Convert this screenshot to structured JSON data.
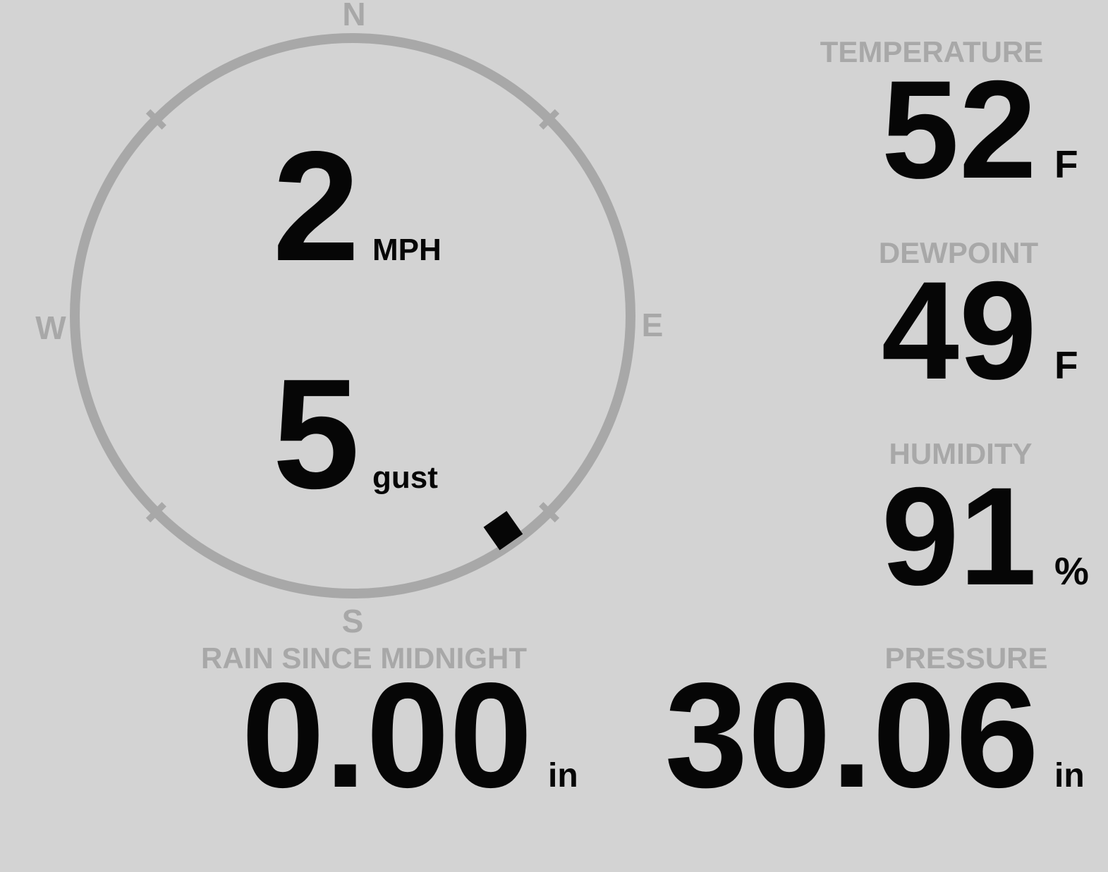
{
  "theme": {
    "background": "#d3d3d3",
    "muted_gray": "#a8a8a8",
    "ink": "#060606"
  },
  "compass": {
    "cardinals": {
      "north": "N",
      "east": "E",
      "south": "S",
      "west": "W"
    },
    "wind_speed": {
      "value": "2",
      "unit": "MPH"
    },
    "wind_gust": {
      "value": "5",
      "unit": "gust"
    },
    "wind_direction_deg": 145
  },
  "stats": {
    "temperature": {
      "label": "TEMPERATURE",
      "value": "52",
      "unit": "F"
    },
    "dewpoint": {
      "label": "DEWPOINT",
      "value": "49",
      "unit": "F"
    },
    "humidity": {
      "label": "HUMIDITY",
      "value": "91",
      "unit": "%"
    },
    "rain_since_midnight": {
      "label": "RAIN SINCE MIDNIGHT",
      "value": "0.00",
      "unit": "in"
    },
    "pressure": {
      "label": "PRESSURE",
      "value": "30.06",
      "unit": "in"
    }
  }
}
